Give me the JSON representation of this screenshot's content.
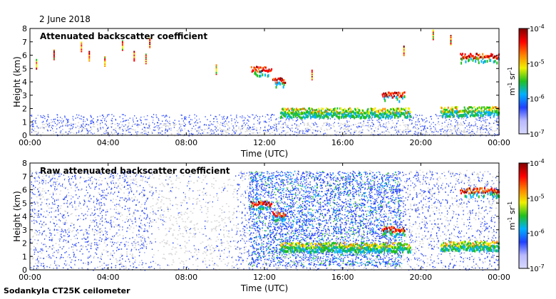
{
  "date": "2 June 2018",
  "footer": "Sodankyla CT25K ceilometer",
  "colors": {
    "background_noise": "#d8d8d8",
    "colormap": [
      "#d8d8ff",
      "#b8b8ff",
      "#2040ff",
      "#00b0ff",
      "#20c020",
      "#f0f000",
      "#ff8000",
      "#ff0000",
      "#800000"
    ]
  },
  "chart_data": [
    {
      "type": "heatmap",
      "title": "Attenuated backscatter coefficient",
      "xlabel": "Time (UTC)",
      "ylabel": "Height (km)",
      "x_ticks": [
        "00:00",
        "04:00",
        "08:00",
        "12:00",
        "16:00",
        "20:00",
        "00:00"
      ],
      "x_tick_hours": [
        0,
        4,
        8,
        12,
        16,
        20,
        24
      ],
      "y_ticks": [
        0,
        1,
        2,
        3,
        4,
        5,
        6,
        7,
        8
      ],
      "ylim": [
        0,
        8
      ],
      "xlim_hours": [
        0,
        24
      ],
      "colorbar": {
        "label_base": "m",
        "label_exp1": "-1",
        "label_mid": " sr",
        "label_exp2": "-1",
        "ticks": [
          {
            "base": "10",
            "exp": "-4"
          },
          {
            "base": "10",
            "exp": "-5"
          },
          {
            "base": "10",
            "exp": "-6"
          },
          {
            "base": "10",
            "exp": "-7"
          }
        ],
        "range_log10": [
          -7,
          -4
        ],
        "scale": "log"
      },
      "features": {
        "boundary_layer_top_km": 1.2,
        "cloud_layers": [
          {
            "t_start": 11.3,
            "t_end": 12.4,
            "height_km": 5.0,
            "intensity": "high"
          },
          {
            "t_start": 12.4,
            "t_end": 13.1,
            "height_km": 4.2,
            "intensity": "high"
          },
          {
            "t_start": 12.8,
            "t_end": 19.5,
            "height_km": 1.9,
            "intensity": "medium"
          },
          {
            "t_start": 18.0,
            "t_end": 19.2,
            "height_km": 3.1,
            "intensity": "high"
          },
          {
            "t_start": 21.0,
            "t_end": 24.0,
            "height_km": 2.0,
            "intensity": "medium"
          },
          {
            "t_start": 22.0,
            "t_end": 24.0,
            "height_km": 6.0,
            "intensity": "high"
          }
        ]
      }
    },
    {
      "type": "heatmap",
      "title": "Raw attenuated backscatter coefficient",
      "xlabel": "Time (UTC)",
      "ylabel": "Height (km)",
      "x_ticks": [
        "00:00",
        "04:00",
        "08:00",
        "12:00",
        "16:00",
        "20:00",
        "00:00"
      ],
      "x_tick_hours": [
        0,
        4,
        8,
        12,
        16,
        20,
        24
      ],
      "y_ticks": [
        0,
        1,
        2,
        3,
        4,
        5,
        6,
        7,
        8
      ],
      "ylim": [
        0,
        8
      ],
      "xlim_hours": [
        0,
        24
      ],
      "colorbar": {
        "label_base": "m",
        "label_exp1": "-1",
        "label_mid": " sr",
        "label_exp2": "-1",
        "ticks": [
          {
            "base": "10",
            "exp": "-4"
          },
          {
            "base": "10",
            "exp": "-5"
          },
          {
            "base": "10",
            "exp": "-6"
          },
          {
            "base": "10",
            "exp": "-7"
          }
        ],
        "range_log10": [
          -7,
          -4
        ],
        "scale": "log"
      }
    }
  ]
}
